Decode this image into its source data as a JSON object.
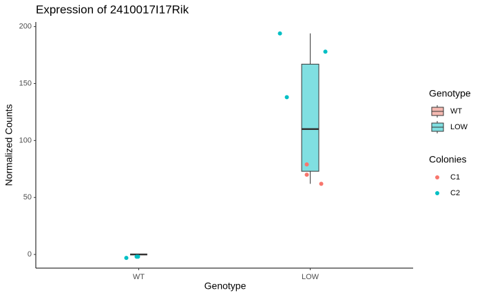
{
  "chart_data": {
    "type": "box",
    "title": "Expression of 2410017I17Rik",
    "x_label": "Genotype",
    "y_label": "Normalized Counts",
    "categories": [
      "WT",
      "LOW"
    ],
    "ylim": [
      -12,
      204
    ],
    "yticks": [
      0,
      50,
      100,
      150,
      200
    ],
    "boxes_legend_title": "Genotype",
    "boxes": [
      {
        "name": "WT",
        "color": "#f4b9b1",
        "min": 0,
        "q1": 0,
        "median": 0,
        "q3": 0,
        "max": 0
      },
      {
        "name": "LOW",
        "color": "#80dfe1",
        "min": 62,
        "q1": 73,
        "median": 110,
        "q3": 167,
        "max": 194
      }
    ],
    "points_legend_title": "Colonies",
    "series": [
      {
        "name": "C1",
        "color": "#f8766d",
        "x": [
          "LOW",
          "LOW",
          "LOW"
        ],
        "values": [
          79,
          70,
          62
        ]
      },
      {
        "name": "C2",
        "color": "#00bfc4",
        "x": [
          "WT",
          "WT",
          "WT",
          "LOW",
          "LOW",
          "LOW"
        ],
        "values": [
          -3,
          -2,
          -2,
          194,
          178,
          138
        ]
      }
    ]
  }
}
